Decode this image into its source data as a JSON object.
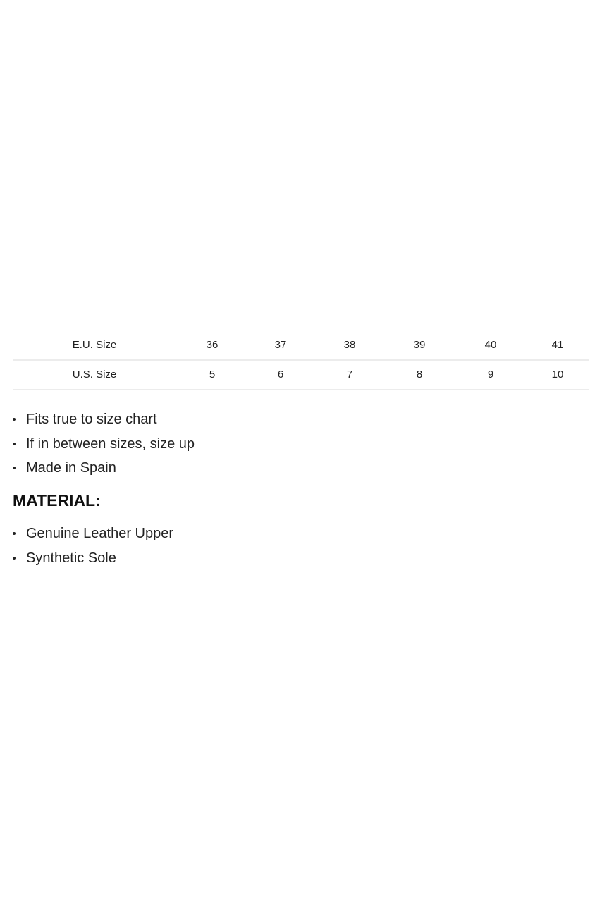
{
  "size_table": {
    "rows": [
      {
        "label": "E.U. Size",
        "values": [
          "36",
          "37",
          "38",
          "39",
          "40",
          "41"
        ]
      },
      {
        "label": "U.S. Size",
        "values": [
          "5",
          "6",
          "7",
          "8",
          "9",
          "10"
        ]
      }
    ]
  },
  "fit_notes": [
    "Fits true to size chart",
    "If in between sizes, size up",
    "Made in Spain"
  ],
  "material": {
    "heading": "MATERIAL:",
    "items": [
      "Genuine Leather Upper",
      "Synthetic Sole"
    ]
  }
}
